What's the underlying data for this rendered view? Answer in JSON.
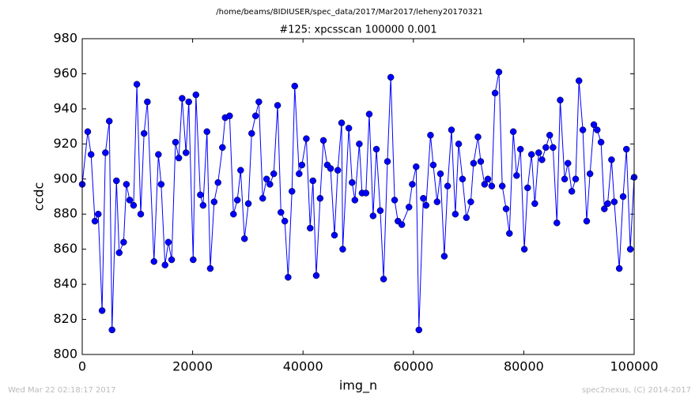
{
  "chart_data": {
    "type": "line",
    "header": "/home/beams/8IDIUSER/spec_data/2017/Mar2017/leheny20170321",
    "title": "#125: xpcsscan 100000 0.001",
    "x_label": "img_n",
    "y_label": "ccdc",
    "footer_left": "Wed Mar 22 02:18:17 2017",
    "footer_right": "spec2nexus, (C) 2014-2017",
    "color": "#0000ff",
    "marker": "circle",
    "grid": false,
    "xlim": [
      0,
      100000
    ],
    "ylim": [
      800,
      980
    ],
    "xticks": [
      0,
      20000,
      40000,
      60000,
      80000,
      100000
    ],
    "yticks": [
      800,
      820,
      840,
      860,
      880,
      900,
      920,
      940,
      960,
      980
    ],
    "x": [
      0,
      1000,
      1600,
      2300,
      2900,
      3600,
      4200,
      4900,
      5400,
      6200,
      6700,
      7500,
      8000,
      8600,
      9300,
      9900,
      10600,
      11200,
      11800,
      13000,
      13800,
      14300,
      15000,
      15600,
      16200,
      16900,
      17500,
      18100,
      18800,
      19300,
      20100,
      20600,
      21400,
      21900,
      22600,
      23200,
      23900,
      24600,
      25400,
      25900,
      26700,
      27400,
      28100,
      28700,
      29400,
      30100,
      30700,
      31400,
      32000,
      32700,
      33400,
      34000,
      34700,
      35400,
      36000,
      36700,
      37300,
      38000,
      38500,
      39300,
      39800,
      40600,
      41300,
      41800,
      42400,
      43100,
      43700,
      44400,
      45000,
      45700,
      46300,
      47000,
      47200,
      48300,
      48900,
      49400,
      50200,
      50700,
      51400,
      52000,
      52700,
      53300,
      54000,
      54600,
      55300,
      55900,
      56600,
      57200,
      57900,
      59200,
      59800,
      60500,
      61000,
      61800,
      62300,
      63100,
      63600,
      64300,
      64900,
      65600,
      66200,
      66900,
      67600,
      68200,
      68900,
      69600,
      70400,
      70900,
      71700,
      72200,
      72900,
      73500,
      74200,
      74800,
      75500,
      76100,
      76800,
      77400,
      78100,
      78700,
      79400,
      80100,
      80700,
      81400,
      82000,
      82700,
      83300,
      84000,
      84700,
      85300,
      86000,
      86600,
      87400,
      88000,
      88700,
      89400,
      90000,
      90700,
      91400,
      92000,
      92700,
      93300,
      94000,
      94600,
      95200,
      95900,
      96400,
      97300,
      98000,
      98600,
      99300,
      100000
    ],
    "values": [
      897,
      927,
      914,
      876,
      880,
      825,
      915,
      933,
      814,
      899,
      858,
      864,
      897,
      888,
      885,
      954,
      880,
      926,
      944,
      853,
      914,
      897,
      851,
      864,
      854,
      921,
      912,
      946,
      915,
      944,
      854,
      948,
      891,
      885,
      927,
      849,
      887,
      898,
      918,
      935,
      936,
      880,
      888,
      905,
      866,
      886,
      926,
      936,
      944,
      889,
      900,
      897,
      903,
      942,
      881,
      876,
      844,
      893,
      953,
      903,
      908,
      923,
      872,
      899,
      845,
      889,
      922,
      908,
      906,
      868,
      905,
      932,
      860,
      929,
      898,
      888,
      920,
      892,
      892,
      937,
      879,
      917,
      882,
      843,
      910,
      958,
      888,
      876,
      874,
      884,
      897,
      907,
      814,
      889,
      885,
      925,
      908,
      887,
      903,
      856,
      896,
      928,
      880,
      920,
      900,
      878,
      887,
      909,
      924,
      910,
      897,
      900,
      896,
      949,
      961,
      896,
      883,
      869,
      927,
      902,
      917,
      860,
      895,
      914,
      886,
      915,
      911,
      918,
      925,
      918,
      875,
      945,
      900,
      909,
      893,
      900,
      956,
      928,
      876,
      903,
      931,
      928,
      921,
      883,
      886,
      911,
      887,
      849,
      890,
      917,
      860,
      901
    ]
  }
}
